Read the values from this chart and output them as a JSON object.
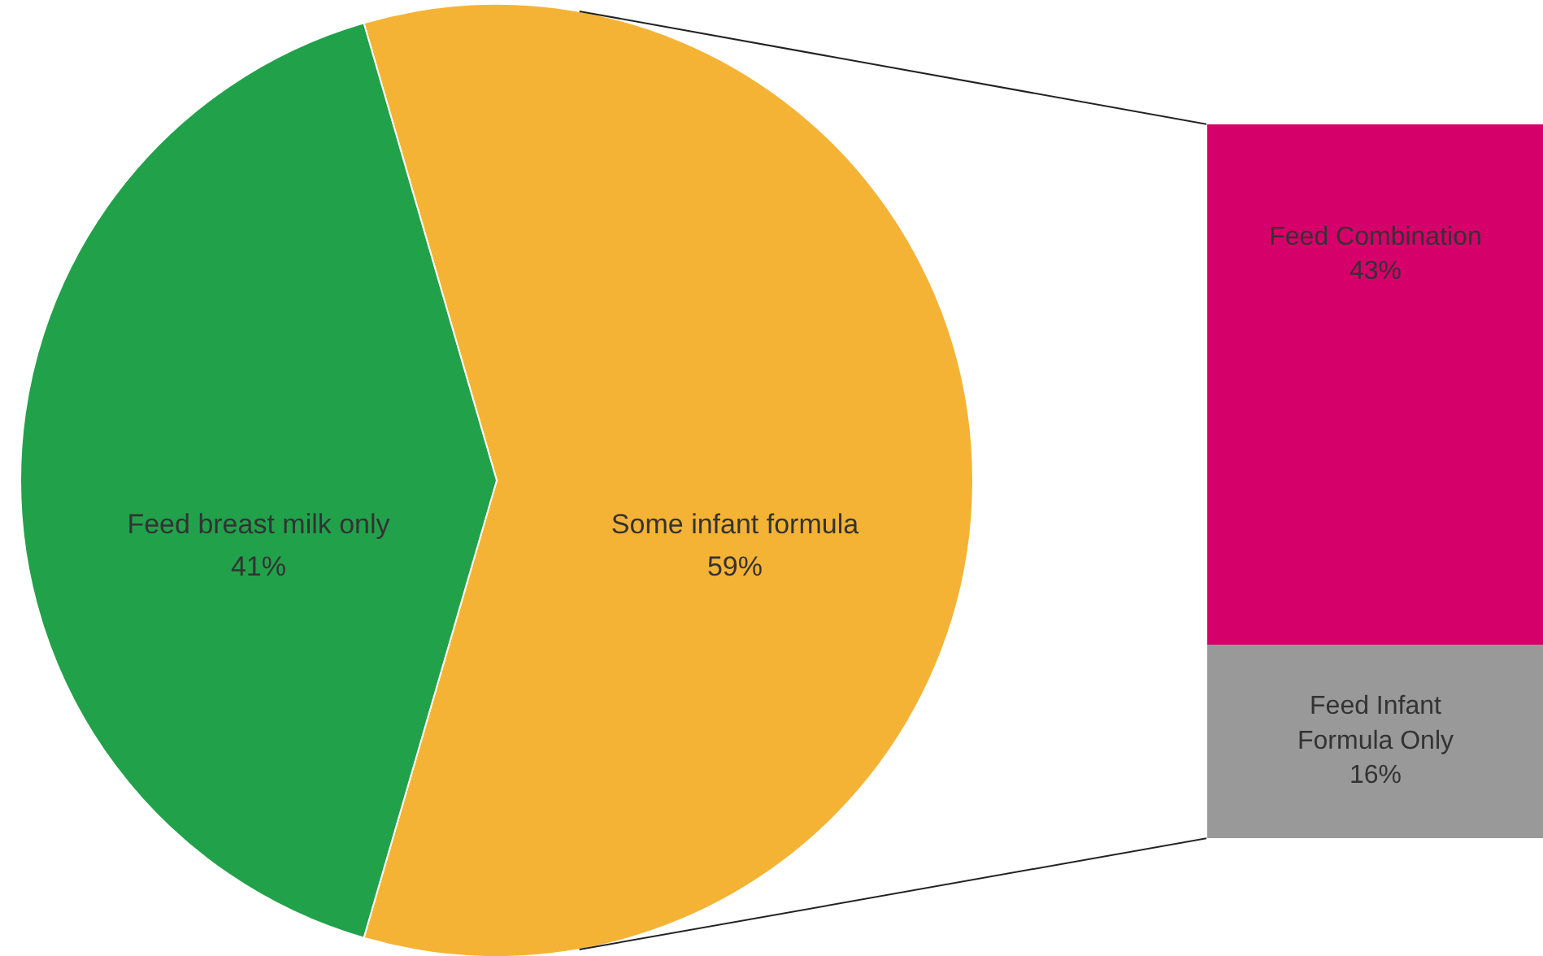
{
  "chart_data": [
    {
      "type": "pie",
      "categories": [
        "Feed breast milk only",
        "Some infant formula"
      ],
      "values": [
        41,
        59
      ],
      "colors": [
        "#22a14b",
        "#f5b335"
      ],
      "value_labels": [
        "41%",
        "59%"
      ]
    },
    {
      "type": "bar",
      "stacked": true,
      "categories": [
        null
      ],
      "series": [
        {
          "name": "Feed Infant Formula Only",
          "color": "#999999",
          "values": [
            16
          ],
          "value_labels": [
            "16%"
          ]
        },
        {
          "name": "Feed Combination",
          "color": "#d6006b",
          "values": [
            43
          ],
          "value_labels": [
            "43%"
          ]
        }
      ]
    }
  ]
}
